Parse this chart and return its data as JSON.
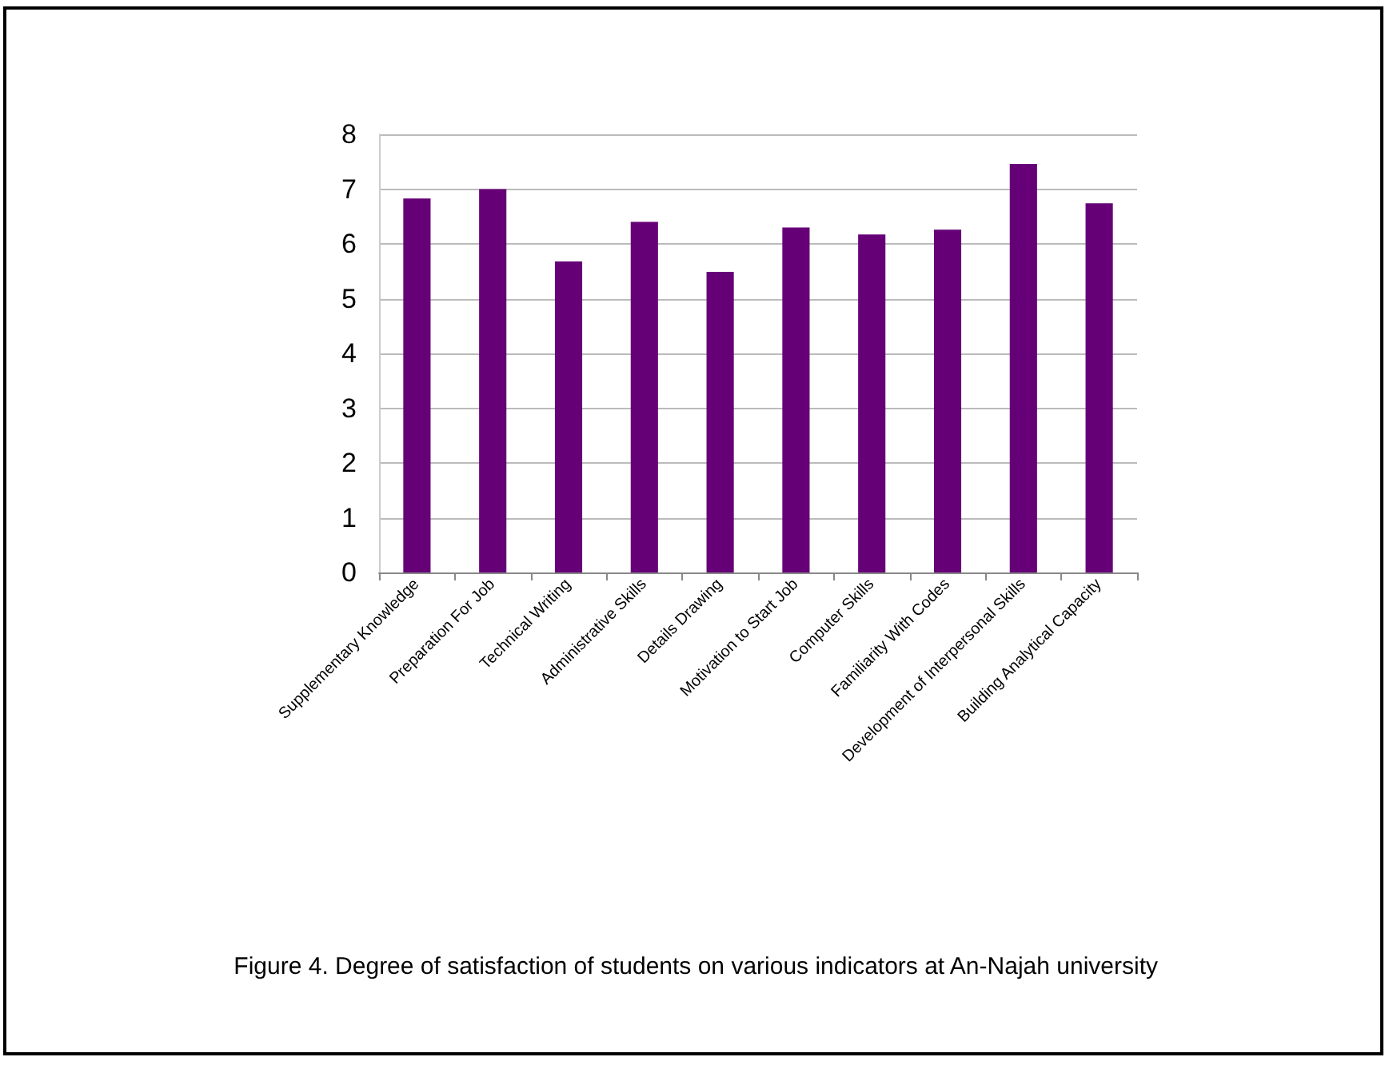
{
  "chart_data": {
    "type": "bar",
    "categories": [
      "Supplementary Knowledge",
      "Preparation For Job",
      "Technical Writing",
      "Administrative Skills",
      "Details Drawing",
      "Motivation to Start Job",
      "Computer Skills",
      "Familiarity With Codes",
      "Development of Interpersonal Skills",
      "Building Analytical Capacity"
    ],
    "values": [
      6.83,
      7.0,
      5.68,
      6.4,
      5.49,
      6.3,
      6.17,
      6.26,
      7.46,
      6.74
    ],
    "color": "#660077",
    "ylim": [
      0,
      8
    ],
    "yticks": [
      0,
      1,
      2,
      3,
      4,
      5,
      6,
      7,
      8
    ],
    "grid": "y",
    "annotations": [
      "Figure 4. Degree of satisfaction of students on various indicators at An-Najah university"
    ]
  }
}
